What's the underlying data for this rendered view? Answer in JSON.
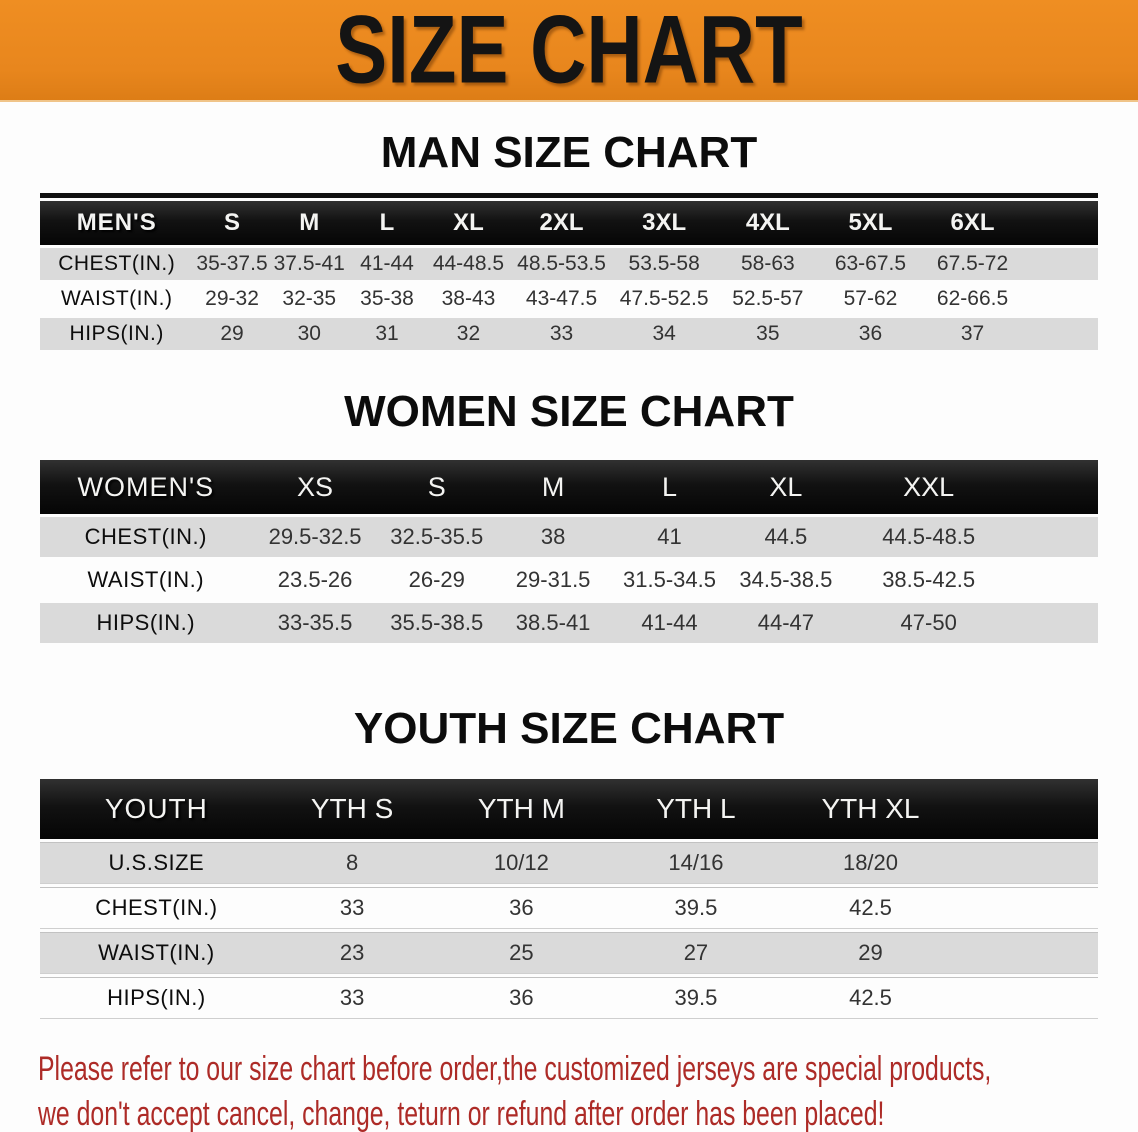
{
  "banner": {
    "title": "SIZE CHART",
    "bg_color": "#e8861d",
    "text_color": "#141414"
  },
  "colors": {
    "header_bar": "#121212",
    "stripe_row": "#dadada",
    "footer_text": "#ad2b27"
  },
  "sections": [
    {
      "title": "MAN SIZE CHART",
      "table": {
        "header_label": "MEN'S",
        "sizes": [
          "S",
          "M",
          "L",
          "XL",
          "2XL",
          "3XL",
          "4XL",
          "5XL",
          "6XL"
        ],
        "rows": [
          {
            "label": "CHEST(IN.)",
            "values": [
              "35-37.5",
              "37.5-41",
              "41-44",
              "44-48.5",
              "48.5-53.5",
              "53.5-58",
              "58-63",
              "63-67.5",
              "67.5-72"
            ]
          },
          {
            "label": "WAIST(IN.)",
            "values": [
              "29-32",
              "32-35",
              "35-38",
              "38-43",
              "43-47.5",
              "47.5-52.5",
              "52.5-57",
              "57-62",
              "62-66.5"
            ]
          },
          {
            "label": "HIPS(IN.)",
            "values": [
              "29",
              "30",
              "31",
              "32",
              "33",
              "34",
              "35",
              "36",
              "37"
            ]
          }
        ]
      }
    },
    {
      "title": "WOMEN SIZE CHART",
      "table": {
        "header_label": "WOMEN'S",
        "sizes": [
          "XS",
          "S",
          "M",
          "L",
          "XL",
          "XXL"
        ],
        "rows": [
          {
            "label": "CHEST(IN.)",
            "values": [
              "29.5-32.5",
              "32.5-35.5",
              "38",
              "41",
              "44.5",
              "44.5-48.5"
            ]
          },
          {
            "label": "WAIST(IN.)",
            "values": [
              "23.5-26",
              "26-29",
              "29-31.5",
              "31.5-34.5",
              "34.5-38.5",
              "38.5-42.5"
            ]
          },
          {
            "label": "HIPS(IN.)",
            "values": [
              "33-35.5",
              "35.5-38.5",
              "38.5-41",
              "41-44",
              "44-47",
              "47-50"
            ]
          }
        ]
      }
    },
    {
      "title": "YOUTH SIZE CHART",
      "table": {
        "header_label": "YOUTH",
        "sizes": [
          "YTH S",
          "YTH M",
          "YTH L",
          "YTH XL"
        ],
        "rows": [
          {
            "label": "U.S.SIZE",
            "values": [
              "8",
              "10/12",
              "14/16",
              "18/20"
            ]
          },
          {
            "label": "CHEST(IN.)",
            "values": [
              "33",
              "36",
              "39.5",
              "42.5"
            ]
          },
          {
            "label": "WAIST(IN.)",
            "values": [
              "23",
              "25",
              "27",
              "29"
            ]
          },
          {
            "label": "HIPS(IN.)",
            "values": [
              "33",
              "36",
              "39.5",
              "42.5"
            ]
          }
        ]
      }
    }
  ],
  "footer": {
    "line1": "Please refer to our size chart before order,the customized jerseys are special products,",
    "line2": "we don't accept cancel, change, teturn or refund after order has been placed!"
  }
}
